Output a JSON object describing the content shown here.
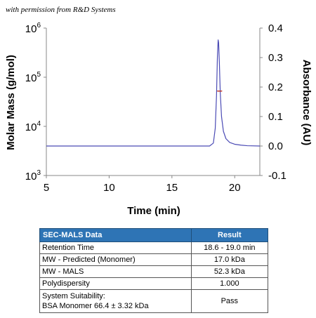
{
  "watermark": "with permission from R&D Systems",
  "chart_data": {
    "type": "line",
    "xlabel": "Time (min)",
    "ylabel_left": "Molar Mass (g/mol)",
    "ylabel_right": "Absorbance (AU)",
    "xlim": [
      5,
      22
    ],
    "x_ticks": [
      "5",
      "10",
      "15",
      "20"
    ],
    "x_tick_values": [
      5,
      10,
      15,
      20
    ],
    "y_left_scale": "log",
    "y_left_ticks": [
      {
        "base": "10",
        "exp": "3",
        "value": 1000
      },
      {
        "base": "10",
        "exp": "4",
        "value": 10000
      },
      {
        "base": "10",
        "exp": "5",
        "value": 100000
      },
      {
        "base": "10",
        "exp": "6",
        "value": 1000000
      }
    ],
    "y_right_ticks": [
      "0.4",
      "0.3",
      "0.2",
      "0.1",
      "0.0",
      "-0.1"
    ],
    "y_right_values": [
      0.4,
      0.3,
      0.2,
      0.1,
      0.0,
      -0.1
    ],
    "ylim_right": [
      -0.1,
      0.4
    ],
    "series": [
      {
        "color": "#4b4bb5",
        "axis": "right",
        "x": [
          5,
          10,
          15,
          18.0,
          18.3,
          18.45,
          18.55,
          18.62,
          18.68,
          18.72,
          18.78,
          18.85,
          18.95,
          19.1,
          19.3,
          19.6,
          20.0,
          20.5,
          21,
          22
        ],
        "y": [
          0.0,
          0.0,
          0.0,
          0.0,
          0.01,
          0.06,
          0.17,
          0.3,
          0.36,
          0.35,
          0.28,
          0.18,
          0.1,
          0.05,
          0.025,
          0.012,
          0.006,
          0.003,
          0.001,
          0.0
        ]
      },
      {
        "color": "#c0392b",
        "axis": "left",
        "x": [
          18.6,
          18.7,
          18.8,
          18.9,
          19.0
        ],
        "y": [
          52500,
          52300,
          52200,
          52300,
          52400
        ]
      }
    ]
  },
  "table": {
    "headers": [
      "SEC-MALS Data",
      "Result"
    ],
    "rows": [
      {
        "label": "Retention Time",
        "value": "18.6 - 19.0 min"
      },
      {
        "label": "MW - Predicted (Monomer)",
        "value": "17.0 kDa"
      },
      {
        "label": "MW - MALS",
        "value": "52.3 kDa"
      },
      {
        "label": "Polydispersity",
        "value": "1.000"
      }
    ],
    "last_row": {
      "line1": "System Suitability:",
      "line2": "BSA Monomer 66.4 ± 3.32 kDa",
      "value": "Pass"
    }
  }
}
